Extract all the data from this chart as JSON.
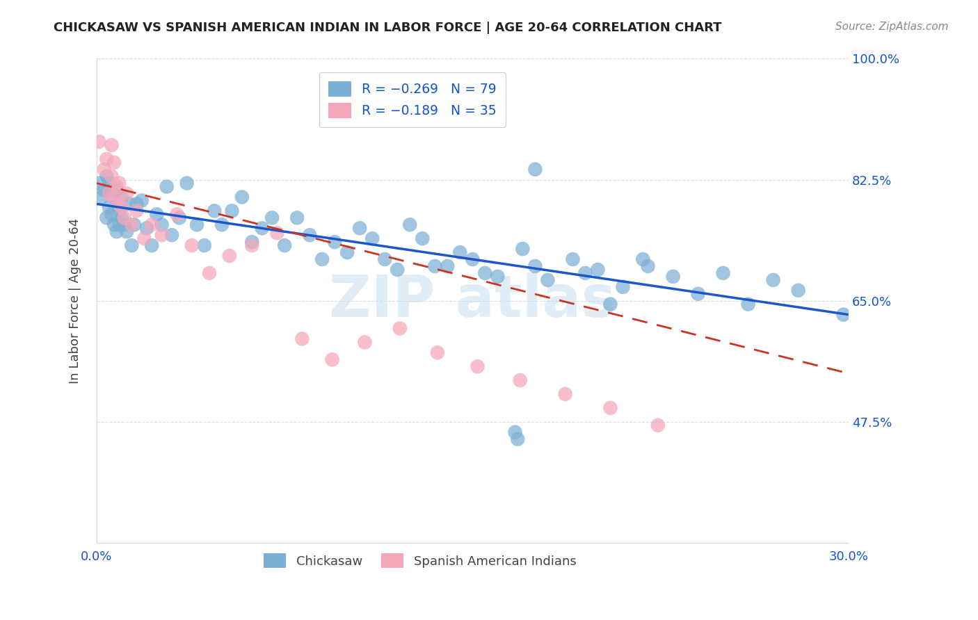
{
  "title": "CHICKASAW VS SPANISH AMERICAN INDIAN IN LABOR FORCE | AGE 20-64 CORRELATION CHART",
  "source": "Source: ZipAtlas.com",
  "ylabel": "In Labor Force | Age 20-64",
  "xlim": [
    0.0,
    0.3
  ],
  "ylim": [
    0.3,
    1.0
  ],
  "xtick_pos": [
    0.0,
    0.05,
    0.1,
    0.15,
    0.2,
    0.25,
    0.3
  ],
  "xticklabels": [
    "0.0%",
    "",
    "",
    "",
    "",
    "",
    "30.0%"
  ],
  "ytick_positions": [
    1.0,
    0.825,
    0.65,
    0.475
  ],
  "ytick_labels": [
    "100.0%",
    "82.5%",
    "65.0%",
    "47.5%"
  ],
  "blue_scatter_color": "#7bafd4",
  "pink_scatter_color": "#f4a7b9",
  "blue_line_color": "#1a56cc",
  "pink_line_color": "#cc3322",
  "watermark_color": "#c8dff0",
  "bg_color": "#ffffff",
  "grid_color": "#dddddd",
  "label_color": "#1155cc",
  "title_color": "#222222",
  "blue_x": [
    0.001,
    0.002,
    0.003,
    0.004,
    0.004,
    0.005,
    0.005,
    0.006,
    0.006,
    0.007,
    0.007,
    0.008,
    0.008,
    0.009,
    0.009,
    0.01,
    0.01,
    0.011,
    0.012,
    0.013,
    0.014,
    0.015,
    0.016,
    0.018,
    0.02,
    0.022,
    0.024,
    0.026,
    0.028,
    0.03,
    0.033,
    0.036,
    0.04,
    0.043,
    0.047,
    0.05,
    0.054,
    0.058,
    0.062,
    0.066,
    0.07,
    0.075,
    0.08,
    0.085,
    0.09,
    0.095,
    0.1,
    0.105,
    0.11,
    0.115,
    0.12,
    0.125,
    0.13,
    0.135,
    0.14,
    0.145,
    0.15,
    0.155,
    0.16,
    0.17,
    0.175,
    0.18,
    0.19,
    0.2,
    0.21,
    0.22,
    0.23,
    0.24,
    0.25,
    0.26,
    0.27,
    0.28,
    0.167,
    0.168,
    0.175,
    0.195,
    0.205,
    0.218,
    0.298
  ],
  "blue_y": [
    0.82,
    0.8,
    0.81,
    0.77,
    0.83,
    0.785,
    0.82,
    0.775,
    0.81,
    0.76,
    0.8,
    0.81,
    0.75,
    0.78,
    0.76,
    0.8,
    0.77,
    0.76,
    0.75,
    0.79,
    0.73,
    0.76,
    0.79,
    0.795,
    0.755,
    0.73,
    0.775,
    0.76,
    0.815,
    0.745,
    0.77,
    0.82,
    0.76,
    0.73,
    0.78,
    0.76,
    0.78,
    0.8,
    0.735,
    0.755,
    0.77,
    0.73,
    0.77,
    0.745,
    0.71,
    0.735,
    0.72,
    0.755,
    0.74,
    0.71,
    0.695,
    0.76,
    0.74,
    0.7,
    0.7,
    0.72,
    0.71,
    0.69,
    0.685,
    0.725,
    0.7,
    0.68,
    0.71,
    0.695,
    0.67,
    0.7,
    0.685,
    0.66,
    0.69,
    0.645,
    0.68,
    0.665,
    0.46,
    0.45,
    0.84,
    0.69,
    0.645,
    0.71,
    0.63
  ],
  "pink_x": [
    0.001,
    0.003,
    0.004,
    0.005,
    0.006,
    0.006,
    0.007,
    0.007,
    0.008,
    0.009,
    0.009,
    0.01,
    0.011,
    0.012,
    0.014,
    0.016,
    0.019,
    0.022,
    0.026,
    0.032,
    0.038,
    0.045,
    0.053,
    0.062,
    0.072,
    0.082,
    0.094,
    0.107,
    0.121,
    0.136,
    0.152,
    0.169,
    0.187,
    0.205,
    0.224
  ],
  "pink_y": [
    0.88,
    0.84,
    0.855,
    0.805,
    0.875,
    0.83,
    0.85,
    0.8,
    0.815,
    0.79,
    0.82,
    0.785,
    0.77,
    0.805,
    0.76,
    0.78,
    0.74,
    0.76,
    0.745,
    0.775,
    0.73,
    0.69,
    0.715,
    0.73,
    0.748,
    0.595,
    0.565,
    0.59,
    0.61,
    0.575,
    0.555,
    0.535,
    0.515,
    0.495,
    0.47
  ],
  "blue_trend": [
    0.0,
    0.3,
    0.79,
    0.63
  ],
  "pink_trend": [
    0.0,
    0.3,
    0.82,
    0.545
  ]
}
